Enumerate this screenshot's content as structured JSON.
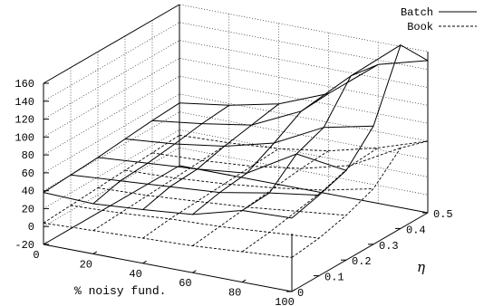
{
  "chart_data": {
    "type": "surface3d",
    "title": "",
    "xlabel": "% noisy fund.",
    "ylabel": "η",
    "zlabel": "",
    "xlim": [
      0,
      100
    ],
    "ylim": [
      0,
      0.5
    ],
    "zlim": [
      -20,
      160
    ],
    "xticks": [
      "0",
      "20",
      "40",
      "60",
      "80",
      "100"
    ],
    "yticks": [
      "0",
      "0.1",
      "0.2",
      "0.3",
      "0.4",
      "0.5"
    ],
    "zticks": [
      "-20",
      "0",
      "20",
      "40",
      "60",
      "80",
      "100",
      "120",
      "140",
      "160"
    ],
    "x": [
      0,
      20,
      40,
      60,
      80,
      100
    ],
    "y": [
      0,
      0.1,
      0.2,
      0.3,
      0.4,
      0.5
    ],
    "grid": true,
    "legend": "top-right",
    "series": [
      {
        "name": "Batch",
        "style": "solid",
        "z": [
          [
            38,
            36,
            40,
            45,
            60,
            62
          ],
          [
            40,
            44,
            48,
            52,
            62,
            70
          ],
          [
            42,
            46,
            50,
            56,
            88,
            80
          ],
          [
            45,
            50,
            58,
            72,
            100,
            112
          ],
          [
            48,
            55,
            64,
            90,
            140,
            185
          ],
          [
            50,
            58,
            70,
            92,
            135,
            150
          ]
        ]
      },
      {
        "name": "Book",
        "style": "dashed",
        "z": [
          [
            4,
            6,
            8,
            10,
            14,
            18
          ],
          [
            6,
            8,
            12,
            14,
            18,
            22
          ],
          [
            8,
            10,
            14,
            18,
            24,
            30
          ],
          [
            10,
            12,
            16,
            22,
            30,
            42
          ],
          [
            12,
            14,
            18,
            26,
            40,
            70
          ],
          [
            14,
            16,
            20,
            28,
            42,
            60
          ]
        ]
      }
    ]
  }
}
